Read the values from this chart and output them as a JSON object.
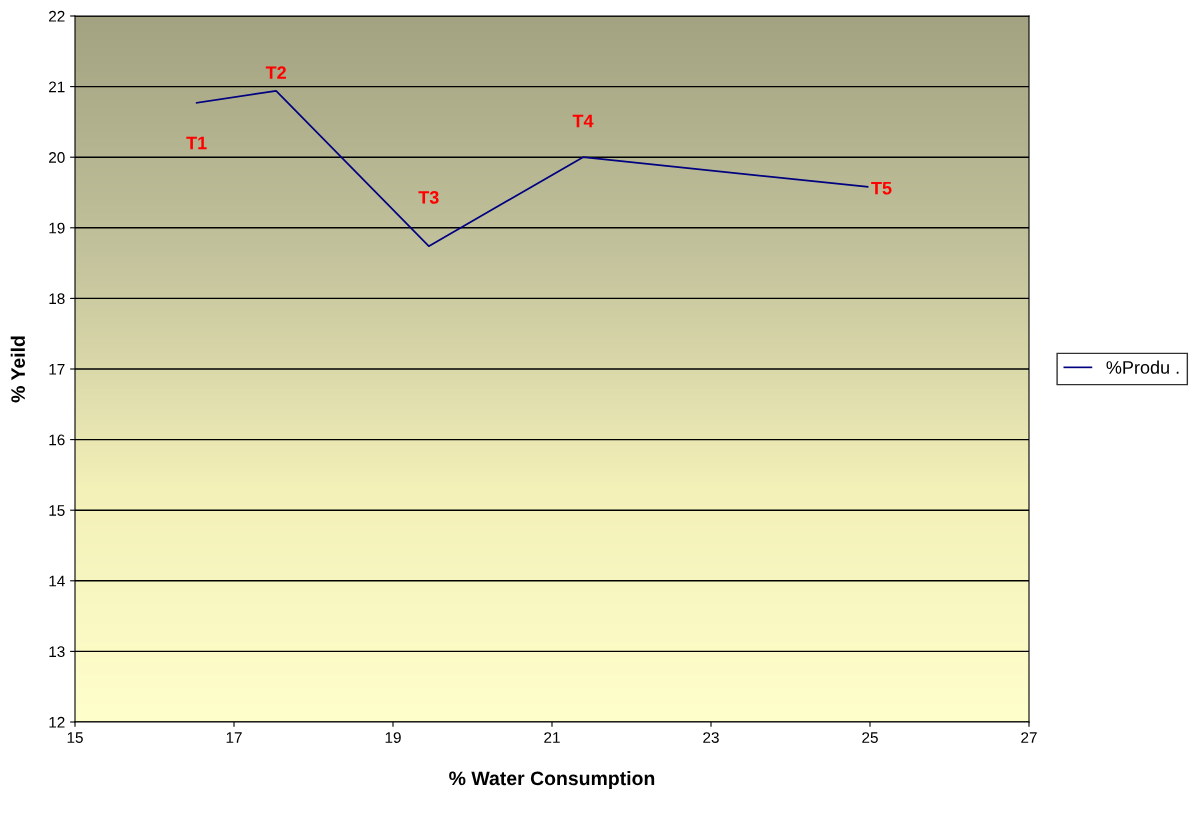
{
  "chart_data": {
    "type": "line",
    "xlabel": "% Water Consumption",
    "ylabel": "% Yeild",
    "x": [
      16.53,
      17.53,
      19.45,
      21.39,
      24.97
    ],
    "series": [
      {
        "name": "%Produ .",
        "color": "#000080",
        "values": [
          20.77,
          20.94,
          18.74,
          20.0,
          19.58
        ]
      }
    ],
    "annotations": [
      {
        "text": "T1",
        "x": 16.53,
        "y": 20.77
      },
      {
        "text": "T2",
        "x": 17.53,
        "y": 20.94
      },
      {
        "text": "T3",
        "x": 19.45,
        "y": 18.74
      },
      {
        "text": "T4",
        "x": 21.39,
        "y": 20.0
      },
      {
        "text": "T5",
        "x": 24.97,
        "y": 19.58
      }
    ],
    "xlim": [
      15,
      27
    ],
    "xticks": [
      15,
      17,
      19,
      21,
      23,
      25,
      27
    ],
    "ylim": [
      12,
      22
    ],
    "yticks": [
      12,
      13,
      14,
      15,
      16,
      17,
      18,
      19,
      20,
      21,
      22
    ],
    "grid": "y",
    "legend": "right",
    "marker": "none",
    "line_style": "solid"
  }
}
